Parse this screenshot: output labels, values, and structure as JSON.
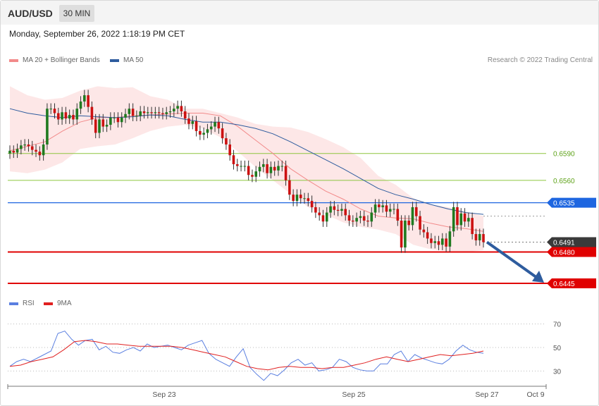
{
  "header": {
    "symbol": "AUD/USD",
    "timeframe": "30 MIN"
  },
  "datetime": "Monday, September 26, 2022 1:18:19 PM CET",
  "legend": {
    "ma20": {
      "label": "MA 20 + Bollinger Bands",
      "color": "#f28a8a"
    },
    "ma50": {
      "label": "MA 50",
      "color": "#2e5c9e"
    },
    "research": "Research © 2022 Trading Central"
  },
  "rsi_legend": {
    "rsi": {
      "label": "RSI",
      "color": "#5a7fe0"
    },
    "ma9": {
      "label": "9MA",
      "color": "#e02020"
    }
  },
  "chart_data": [
    {
      "type": "candlestick",
      "ylim": [
        0.643,
        0.6685
      ],
      "x_axis_labels": [
        "Sep 23",
        "Sep 25",
        "Sep 27",
        "Oct 9"
      ],
      "levels": [
        {
          "value": 0.659,
          "label": "0.6590",
          "color": "#8dc63f",
          "style": "thin"
        },
        {
          "value": 0.656,
          "label": "0.6560",
          "color": "#8dc63f",
          "style": "thin"
        },
        {
          "value": 0.6535,
          "label": "0.6535",
          "color": "#1e66e0",
          "style": "tag"
        },
        {
          "value": 0.648,
          "label": "0.6480",
          "color": "#e00000",
          "style": "tag"
        },
        {
          "value": 0.6445,
          "label": "0.6445",
          "color": "#e00000",
          "style": "tag"
        }
      ],
      "last_price": {
        "value": 0.6491,
        "label": "0.6491"
      },
      "forecast_arrow": {
        "from": 0.6491,
        "to": 0.6445,
        "color": "#2e5c9e"
      },
      "closes": [
        0.6593,
        0.6591,
        0.6595,
        0.6599,
        0.66,
        0.6598,
        0.6594,
        0.6592,
        0.6588,
        0.66,
        0.664,
        0.664,
        0.6635,
        0.6628,
        0.6636,
        0.6629,
        0.6633,
        0.6628,
        0.664,
        0.6648,
        0.6655,
        0.6642,
        0.6628,
        0.6613,
        0.6628,
        0.662,
        0.6622,
        0.663,
        0.663,
        0.6625,
        0.663,
        0.6634,
        0.664,
        0.6632,
        0.6632,
        0.6637,
        0.6635,
        0.6636,
        0.6635,
        0.6636,
        0.6635,
        0.6634,
        0.6636,
        0.6637,
        0.664,
        0.6643,
        0.6637,
        0.6629,
        0.6623,
        0.6626,
        0.6615,
        0.6611,
        0.6613,
        0.6617,
        0.662,
        0.6625,
        0.6618,
        0.6607,
        0.66,
        0.6588,
        0.6578,
        0.6576,
        0.6576,
        0.6576,
        0.6566,
        0.6564,
        0.657,
        0.6575,
        0.6578,
        0.6568,
        0.6575,
        0.6571,
        0.6576,
        0.6576,
        0.656,
        0.6544,
        0.6537,
        0.6544,
        0.654,
        0.654,
        0.6537,
        0.653,
        0.6524,
        0.6521,
        0.6514,
        0.6524,
        0.6531,
        0.6527,
        0.6526,
        0.6528,
        0.6521,
        0.6515,
        0.6514,
        0.6518,
        0.652,
        0.6515,
        0.6514,
        0.6524,
        0.6533,
        0.653,
        0.6532,
        0.6525,
        0.6528,
        0.6528,
        0.6515,
        0.6485,
        0.6515,
        0.651,
        0.653,
        0.652,
        0.6505,
        0.6502,
        0.6495,
        0.649,
        0.6492,
        0.6488,
        0.6495,
        0.6486,
        0.6503,
        0.653,
        0.651,
        0.6523,
        0.6514,
        0.6518,
        0.65,
        0.6493,
        0.65,
        0.6491
      ],
      "bollinger": {
        "upper": [
          0.6665,
          0.6655,
          0.665,
          0.6652,
          0.666,
          0.6665,
          0.6663,
          0.6664,
          0.6654,
          0.665,
          0.664,
          0.664,
          0.6635,
          0.663,
          0.6623,
          0.662,
          0.6619,
          0.6614,
          0.6606,
          0.6597,
          0.6585,
          0.6565,
          0.6555,
          0.654,
          0.6533,
          0.653,
          0.6525,
          0.652
        ],
        "lower": [
          0.657,
          0.6568,
          0.6572,
          0.658,
          0.6595,
          0.6598,
          0.66,
          0.6607,
          0.6615,
          0.662,
          0.6622,
          0.6618,
          0.6608,
          0.6592,
          0.6575,
          0.656,
          0.6545,
          0.653,
          0.6522,
          0.6513,
          0.6508,
          0.6505,
          0.65,
          0.6488,
          0.6483,
          0.6481,
          0.648,
          0.6482
        ]
      },
      "ma20": [
        0.6593,
        0.6598,
        0.6603,
        0.6615,
        0.6625,
        0.663,
        0.663,
        0.6632,
        0.6633,
        0.6634,
        0.6635,
        0.6635,
        0.6632,
        0.662,
        0.6605,
        0.659,
        0.6573,
        0.656,
        0.6548,
        0.6539,
        0.6528,
        0.652,
        0.6518,
        0.6517,
        0.6512,
        0.6508,
        0.6506,
        0.6503
      ],
      "ma50": [
        0.664,
        0.6635,
        0.6632,
        0.663,
        0.6632,
        0.6631,
        0.663,
        0.6631,
        0.6633,
        0.6632,
        0.6628,
        0.6625,
        0.6625,
        0.6622,
        0.6618,
        0.6612,
        0.6603,
        0.6593,
        0.6583,
        0.6573,
        0.6562,
        0.6551,
        0.6544,
        0.6539,
        0.6533,
        0.6528,
        0.6524,
        0.6522
      ]
    },
    {
      "type": "line",
      "ylim": [
        20,
        80
      ],
      "y_ticks": [
        30,
        50,
        70
      ],
      "series": [
        {
          "name": "RSI",
          "color": "#5a7fe0",
          "values": [
            34,
            38,
            40,
            38,
            41,
            44,
            47,
            62,
            64,
            57,
            52,
            56,
            57,
            48,
            51,
            46,
            45,
            48,
            50,
            47,
            53,
            50,
            51,
            52,
            50,
            48,
            52,
            54,
            56,
            45,
            40,
            37,
            34,
            42,
            49,
            33,
            27,
            22,
            28,
            26,
            31,
            37,
            40,
            35,
            37,
            30,
            31,
            33,
            40,
            38,
            33,
            31,
            30,
            30,
            36,
            36,
            44,
            47,
            38,
            44,
            41,
            39,
            37,
            36,
            40,
            47,
            52,
            48,
            46,
            45
          ]
        },
        {
          "name": "9MA",
          "color": "#e02020",
          "values": [
            34,
            35,
            38,
            40,
            42,
            48,
            55,
            56,
            55,
            53,
            53,
            52,
            51,
            51,
            51,
            51,
            50,
            48,
            46,
            44,
            42,
            38,
            34,
            32,
            31,
            33,
            34,
            33,
            33,
            32,
            33,
            33,
            35,
            37,
            40,
            42,
            40,
            38,
            40,
            42,
            44,
            43,
            44,
            45,
            47
          ]
        }
      ]
    }
  ]
}
